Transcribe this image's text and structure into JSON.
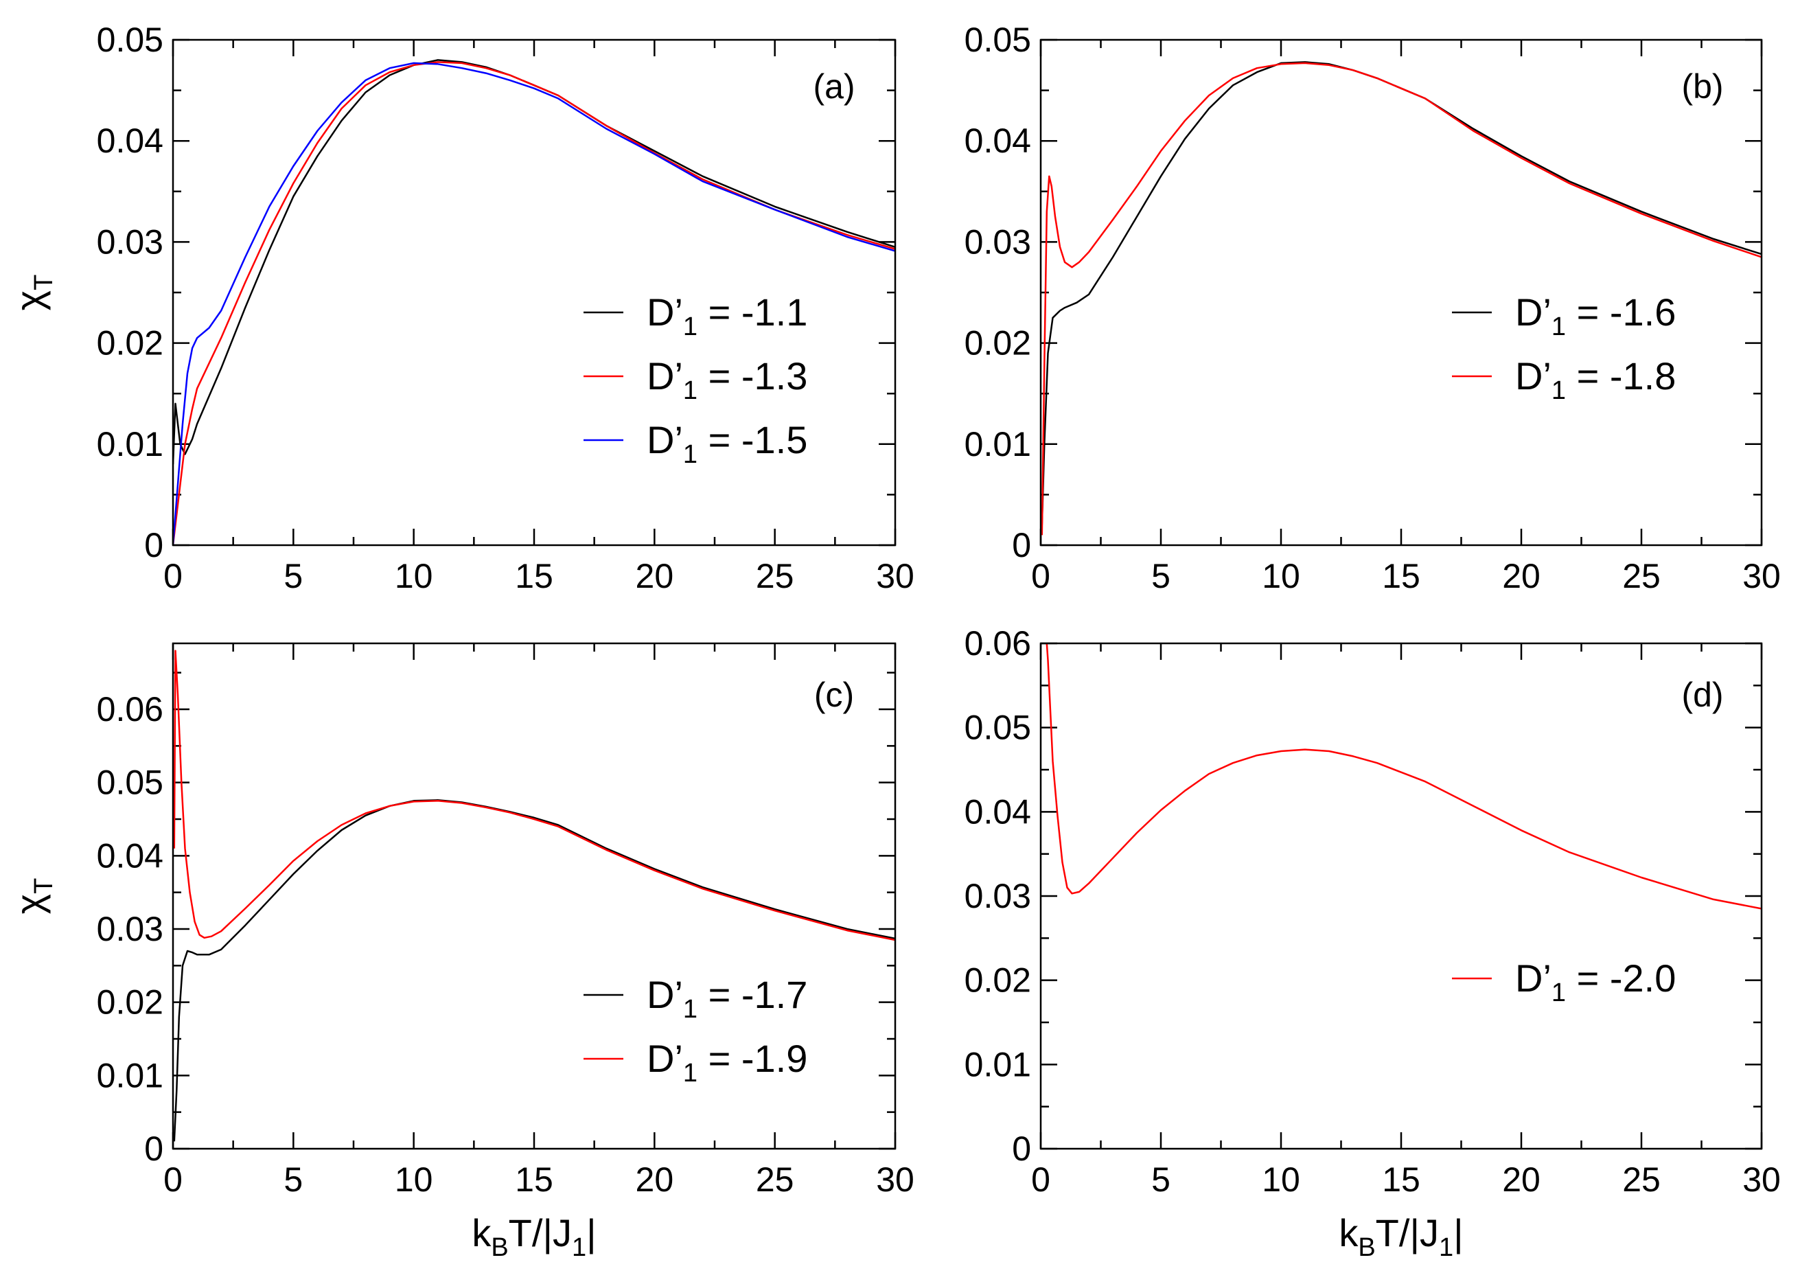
{
  "figure": {
    "axis_titles": {
      "y_main": "χ",
      "y_sub": "T",
      "x_parts": [
        "k",
        "B",
        "T/|J",
        "1",
        "|"
      ]
    }
  },
  "chart_data": [
    {
      "type": "line",
      "panel_label": "(a)",
      "xlim": [
        0,
        30
      ],
      "ylim": [
        0,
        0.05
      ],
      "xticks": [
        0,
        5,
        10,
        15,
        20,
        25,
        30
      ],
      "xtick_labels": [
        "0",
        "5",
        "10",
        "15",
        "20",
        "25",
        "30"
      ],
      "yticks": [
        0,
        0.01,
        0.02,
        0.03,
        0.04,
        0.05
      ],
      "ytick_labels": [
        "0",
        "0.01",
        "0.02",
        "0.03",
        "0.04",
        "0.05"
      ],
      "ylabel": "χT",
      "xlabel": "",
      "legend_position": "right",
      "series": [
        {
          "name": "D'1 = -1.1",
          "legend_main": "D’",
          "legend_sub": "1",
          "legend_value": " = -1.1",
          "color": "#000000",
          "x": [
            0,
            0.1,
            0.3,
            0.5,
            0.8,
            1,
            2,
            3,
            4,
            5,
            6,
            7,
            8,
            9,
            10,
            11,
            12,
            13,
            14,
            15,
            16,
            18,
            20,
            22,
            25,
            28,
            30
          ],
          "y": [
            0.008,
            0.014,
            0.01,
            0.009,
            0.0105,
            0.012,
            0.0175,
            0.0235,
            0.0292,
            0.0345,
            0.0385,
            0.042,
            0.0448,
            0.0465,
            0.0475,
            0.048,
            0.0478,
            0.0473,
            0.0465,
            0.0455,
            0.0445,
            0.0415,
            0.039,
            0.0365,
            0.0335,
            0.031,
            0.0295
          ]
        },
        {
          "name": "D'1 = -1.3",
          "legend_main": "D’",
          "legend_sub": "1",
          "legend_value": " = -1.3",
          "color": "#ff0000",
          "x": [
            0,
            0.2,
            0.5,
            0.8,
            1,
            2,
            3,
            4,
            5,
            6,
            7,
            8,
            9,
            10,
            11,
            12,
            13,
            14,
            15,
            16,
            18,
            20,
            22,
            25,
            28,
            30
          ],
          "y": [
            0,
            0.004,
            0.01,
            0.0135,
            0.0155,
            0.0205,
            0.026,
            0.0312,
            0.0358,
            0.0398,
            0.0432,
            0.0455,
            0.0468,
            0.0475,
            0.0478,
            0.0477,
            0.0472,
            0.0465,
            0.0455,
            0.0445,
            0.0415,
            0.0388,
            0.0362,
            0.0332,
            0.0307,
            0.0293
          ]
        },
        {
          "name": "D'1 = -1.5",
          "legend_main": "D’",
          "legend_sub": "1",
          "legend_value": " = -1.5",
          "color": "#0000ff",
          "x": [
            0,
            0.2,
            0.4,
            0.6,
            0.8,
            1,
            1.5,
            2,
            3,
            4,
            5,
            6,
            7,
            8,
            9,
            10,
            11,
            12,
            13,
            14,
            15,
            16,
            18,
            20,
            22,
            25,
            28,
            30
          ],
          "y": [
            0,
            0.006,
            0.012,
            0.017,
            0.0195,
            0.0205,
            0.0215,
            0.0232,
            0.0285,
            0.0335,
            0.0375,
            0.041,
            0.0438,
            0.046,
            0.0472,
            0.0477,
            0.0476,
            0.0472,
            0.0467,
            0.046,
            0.0452,
            0.0442,
            0.0412,
            0.0387,
            0.036,
            0.0332,
            0.0305,
            0.0291
          ]
        }
      ]
    },
    {
      "type": "line",
      "panel_label": "(b)",
      "xlim": [
        0,
        30
      ],
      "ylim": [
        0,
        0.05
      ],
      "xticks": [
        0,
        5,
        10,
        15,
        20,
        25,
        30
      ],
      "xtick_labels": [
        "0",
        "5",
        "10",
        "15",
        "20",
        "25",
        "30"
      ],
      "yticks": [
        0,
        0.01,
        0.02,
        0.03,
        0.04,
        0.05
      ],
      "ytick_labels": [
        "0",
        "0.01",
        "0.02",
        "0.03",
        "0.04",
        "0.05"
      ],
      "ylabel": "",
      "xlabel": "",
      "legend_position": "right",
      "series": [
        {
          "name": "D'1 = -1.6",
          "legend_main": "D’",
          "legend_sub": "1",
          "legend_value": " = -1.6",
          "color": "#000000",
          "x": [
            0.05,
            0.15,
            0.3,
            0.5,
            0.8,
            1,
            1.5,
            2,
            3,
            4,
            5,
            6,
            7,
            8,
            9,
            10,
            11,
            12,
            13,
            14,
            15,
            16,
            18,
            20,
            22,
            25,
            28,
            30
          ],
          "y": [
            0.002,
            0.01,
            0.019,
            0.0225,
            0.0232,
            0.0235,
            0.024,
            0.0248,
            0.0285,
            0.0325,
            0.0365,
            0.0402,
            0.0432,
            0.0455,
            0.0468,
            0.0477,
            0.0478,
            0.0476,
            0.047,
            0.0462,
            0.0452,
            0.0442,
            0.0412,
            0.0385,
            0.036,
            0.033,
            0.0303,
            0.0288
          ]
        },
        {
          "name": "D'1 = -1.8",
          "legend_main": "D’",
          "legend_sub": "1",
          "legend_value": " = -1.8",
          "color": "#ff0000",
          "x": [
            0.05,
            0.15,
            0.25,
            0.35,
            0.45,
            0.6,
            0.8,
            1,
            1.3,
            1.6,
            2,
            3,
            4,
            5,
            6,
            7,
            8,
            9,
            10,
            11,
            12,
            13,
            14,
            15,
            16,
            18,
            20,
            22,
            25,
            28,
            30
          ],
          "y": [
            0.001,
            0.018,
            0.033,
            0.0365,
            0.0355,
            0.0325,
            0.0295,
            0.028,
            0.0275,
            0.028,
            0.029,
            0.0322,
            0.0355,
            0.039,
            0.042,
            0.0445,
            0.0462,
            0.0472,
            0.0476,
            0.0477,
            0.0475,
            0.047,
            0.0462,
            0.0452,
            0.0442,
            0.041,
            0.0383,
            0.0358,
            0.0328,
            0.0301,
            0.0285
          ]
        }
      ]
    },
    {
      "type": "line",
      "panel_label": "(c)",
      "xlim": [
        0,
        30
      ],
      "ylim": [
        0,
        0.069
      ],
      "xticks": [
        0,
        5,
        10,
        15,
        20,
        25,
        30
      ],
      "xtick_labels": [
        "0",
        "5",
        "10",
        "15",
        "20",
        "25",
        "30"
      ],
      "yticks": [
        0,
        0.01,
        0.02,
        0.03,
        0.04,
        0.05,
        0.06
      ],
      "ytick_labels": [
        "0",
        "0.01",
        "0.02",
        "0.03",
        "0.04",
        "0.05",
        "0.06"
      ],
      "ylabel": "χT",
      "xlabel": "kBT/|J1|",
      "legend_position": "bottom-right",
      "series": [
        {
          "name": "D'1 = -1.7",
          "legend_main": "D’",
          "legend_sub": "1",
          "legend_value": " = -1.7",
          "color": "#000000",
          "x": [
            0.05,
            0.15,
            0.25,
            0.4,
            0.6,
            0.8,
            1,
            1.5,
            2,
            3,
            4,
            5,
            6,
            7,
            8,
            9,
            10,
            11,
            12,
            13,
            14,
            15,
            16,
            18,
            20,
            22,
            25,
            28,
            30
          ],
          "y": [
            0.001,
            0.008,
            0.018,
            0.025,
            0.027,
            0.0268,
            0.0265,
            0.0265,
            0.0272,
            0.0305,
            0.034,
            0.0375,
            0.0407,
            0.0435,
            0.0455,
            0.0468,
            0.0475,
            0.0476,
            0.0473,
            0.0467,
            0.046,
            0.0452,
            0.0442,
            0.041,
            0.0382,
            0.0357,
            0.0327,
            0.03,
            0.0287
          ]
        },
        {
          "name": "D'1 = -1.9",
          "legend_main": "D’",
          "legend_sub": "1",
          "legend_value": " = -1.9",
          "color": "#ff0000",
          "x": [
            0.05,
            0.1,
            0.2,
            0.35,
            0.5,
            0.7,
            0.9,
            1.1,
            1.3,
            1.6,
            2,
            3,
            4,
            5,
            6,
            7,
            8,
            9,
            10,
            11,
            12,
            13,
            14,
            15,
            16,
            18,
            20,
            22,
            25,
            28,
            30
          ],
          "y": [
            0.041,
            0.068,
            0.062,
            0.05,
            0.041,
            0.035,
            0.031,
            0.0292,
            0.0288,
            0.029,
            0.0297,
            0.0328,
            0.036,
            0.0393,
            0.042,
            0.0442,
            0.0458,
            0.0468,
            0.0474,
            0.0475,
            0.0472,
            0.0466,
            0.0459,
            0.045,
            0.044,
            0.0408,
            0.038,
            0.0355,
            0.0325,
            0.0298,
            0.0285
          ]
        }
      ]
    },
    {
      "type": "line",
      "panel_label": "(d)",
      "xlim": [
        0,
        30
      ],
      "ylim": [
        0,
        0.06
      ],
      "xticks": [
        0,
        5,
        10,
        15,
        20,
        25,
        30
      ],
      "xtick_labels": [
        "0",
        "5",
        "10",
        "15",
        "20",
        "25",
        "30"
      ],
      "yticks": [
        0,
        0.01,
        0.02,
        0.03,
        0.04,
        0.05,
        0.06
      ],
      "ytick_labels": [
        "0",
        "0.01",
        "0.02",
        "0.03",
        "0.04",
        "0.05",
        "0.06"
      ],
      "ylabel": "",
      "xlabel": "kBT/|J1|",
      "legend_position": "right",
      "series": [
        {
          "name": "D'1 = -2.0",
          "legend_main": "D’",
          "legend_sub": "1",
          "legend_value": " = -2.0",
          "color": "#ff0000",
          "x": [
            0.25,
            0.3,
            0.4,
            0.5,
            0.7,
            0.9,
            1.1,
            1.3,
            1.6,
            2,
            3,
            4,
            5,
            6,
            7,
            8,
            9,
            10,
            11,
            12,
            13,
            14,
            15,
            16,
            18,
            20,
            22,
            25,
            28,
            30
          ],
          "y": [
            0.06,
            0.058,
            0.052,
            0.046,
            0.0395,
            0.034,
            0.031,
            0.0303,
            0.0305,
            0.0315,
            0.0345,
            0.0375,
            0.0402,
            0.0425,
            0.0445,
            0.0458,
            0.0467,
            0.0472,
            0.0474,
            0.0472,
            0.0466,
            0.0458,
            0.0447,
            0.0436,
            0.0407,
            0.0378,
            0.0352,
            0.0322,
            0.0296,
            0.0285
          ]
        }
      ]
    }
  ]
}
